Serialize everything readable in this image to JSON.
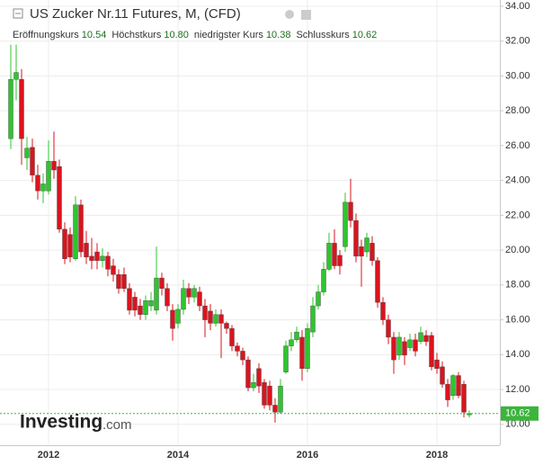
{
  "chart_data": {
    "type": "candlestick",
    "title": "US Zucker Nr.11 Futures, M, (CFD)",
    "quote": {
      "names": [
        "Eröffnungskurs",
        "Höchstkurs",
        "niedrigster Kurs",
        "Schlusskurs"
      ],
      "value_labels": [
        "10.54",
        "10.80",
        "10.38",
        "10.62"
      ]
    },
    "watermark": {
      "brand": "Investing",
      "suffix": ".com"
    },
    "categories": [
      null,
      null,
      null,
      null,
      null,
      null,
      null,
      "2012",
      null,
      null,
      null,
      null,
      null,
      null,
      null,
      null,
      null,
      null,
      null,
      null,
      null,
      null,
      null,
      null,
      null,
      null,
      null,
      null,
      null,
      null,
      null,
      "2014",
      null,
      null,
      null,
      null,
      null,
      null,
      null,
      null,
      null,
      null,
      null,
      null,
      null,
      null,
      null,
      null,
      null,
      null,
      null,
      null,
      null,
      null,
      null,
      "2016",
      null,
      null,
      null,
      null,
      null,
      null,
      null,
      null,
      null,
      null,
      null,
      null,
      null,
      null,
      null,
      null,
      null,
      null,
      null,
      null,
      null,
      null,
      null,
      "2018",
      null,
      null,
      null,
      null,
      null,
      null
    ],
    "open": [
      26.4,
      29.8,
      29.8,
      25.3,
      25.9,
      24.3,
      23.4,
      23.4,
      25.1,
      24.8,
      21.2,
      20.9,
      19.5,
      22.6,
      20.4,
      19.65,
      19.9,
      19.4,
      19.65,
      19.1,
      18.6,
      18.6,
      17.8,
      17.3,
      16.8,
      16.3,
      16.8,
      16.55,
      18.4,
      17.8,
      16.55,
      15.8,
      16.6,
      17.8,
      17.3,
      17.6,
      16.8,
      16.5,
      15.8,
      16.3,
      15.8,
      15.5,
      14.5,
      14.2,
      13.7,
      12.1,
      13.2,
      12.4,
      12.2,
      11.1,
      10.7,
      13.0,
      14.5,
      14.85,
      15.0,
      13.2,
      15.3,
      16.8,
      17.6,
      18.9,
      20.4,
      19.7,
      20.2,
      22.75,
      21.7,
      20.2,
      19.9,
      20.4,
      19.4,
      17.0,
      16.0,
      15.0,
      13.97,
      14.75,
      14.4,
      14.85,
      14.75,
      15.1,
      15.1,
      13.7,
      13.3,
      12.3,
      11.65,
      12.8,
      12.3,
      10.54
    ],
    "high": [
      31.8,
      31.8,
      30.4,
      26.5,
      26.4,
      24.9,
      24.4,
      26.3,
      26.8,
      25.2,
      21.6,
      21.3,
      23.1,
      22.9,
      21.1,
      20.7,
      20.4,
      20.1,
      19.9,
      19.5,
      18.9,
      19.0,
      18.1,
      17.6,
      17.2,
      17.4,
      17.6,
      20.2,
      18.7,
      18.1,
      16.9,
      16.9,
      18.3,
      18.1,
      18.0,
      17.9,
      17.2,
      16.9,
      16.6,
      16.6,
      15.9,
      15.7,
      14.7,
      14.4,
      13.9,
      12.9,
      13.5,
      12.6,
      12.5,
      11.5,
      12.6,
      14.8,
      15.3,
      15.6,
      15.4,
      15.8,
      17.3,
      18.0,
      19.3,
      21.0,
      21.2,
      20.0,
      23.3,
      24.1,
      22.1,
      20.6,
      21.0,
      20.8,
      19.6,
      17.3,
      16.3,
      15.3,
      15.3,
      15.0,
      15.2,
      15.2,
      15.6,
      15.4,
      15.3,
      14.1,
      13.6,
      12.6,
      12.9,
      13.0,
      12.5,
      10.8
    ],
    "low": [
      25.8,
      28.6,
      24.9,
      24.6,
      23.9,
      22.9,
      22.7,
      23.2,
      24.1,
      21.0,
      19.2,
      19.3,
      19.4,
      19.6,
      19.2,
      18.9,
      18.9,
      19.0,
      18.5,
      18.2,
      17.5,
      17.6,
      16.3,
      16.2,
      16.0,
      16.0,
      16.5,
      16.3,
      17.4,
      16.5,
      14.8,
      15.5,
      16.3,
      16.9,
      17.0,
      16.5,
      15.0,
      15.4,
      15.6,
      13.8,
      15.2,
      14.2,
      13.9,
      13.4,
      11.9,
      11.9,
      11.8,
      10.9,
      10.8,
      10.1,
      10.6,
      12.9,
      14.2,
      14.7,
      12.5,
      13.0,
      15.0,
      16.6,
      17.4,
      18.8,
      18.9,
      18.6,
      19.9,
      21.3,
      19.3,
      17.9,
      19.6,
      19.1,
      16.7,
      15.7,
      14.6,
      12.9,
      13.7,
      13.4,
      14.2,
      13.9,
      14.6,
      14.5,
      13.1,
      12.9,
      12.1,
      11.0,
      11.4,
      11.5,
      10.4,
      10.38
    ],
    "close": [
      29.8,
      30.2,
      26.4,
      25.85,
      24.3,
      23.4,
      23.8,
      25.1,
      24.6,
      21.2,
      19.5,
      19.6,
      22.6,
      19.9,
      19.6,
      19.4,
      19.4,
      19.65,
      18.9,
      18.6,
      17.8,
      17.8,
      16.55,
      16.55,
      16.3,
      17.1,
      17.1,
      18.4,
      17.8,
      16.8,
      15.5,
      16.6,
      17.8,
      17.3,
      17.8,
      16.8,
      16.0,
      15.8,
      16.3,
      15.8,
      15.5,
      14.5,
      14.2,
      13.7,
      12.1,
      12.4,
      12.2,
      11.1,
      11.1,
      10.7,
      12.2,
      14.5,
      14.85,
      15.3,
      13.2,
      15.5,
      16.8,
      17.6,
      18.9,
      20.4,
      19.1,
      19.1,
      22.75,
      21.7,
      19.65,
      19.65,
      20.7,
      19.4,
      17.0,
      16.0,
      15.0,
      13.7,
      15.0,
      13.97,
      14.85,
      14.2,
      15.26,
      14.75,
      13.3,
      13.2,
      12.3,
      11.4,
      12.8,
      11.65,
      10.7,
      10.62
    ],
    "up_color": "#2fc42f",
    "down_color": "#d9141e",
    "last_price_color": "#3bb53b",
    "ylim": [
      8.8,
      34.36
    ],
    "yticks": [
      {
        "value": 10,
        "label": "10.00"
      },
      {
        "value": 12,
        "label": "12.00"
      },
      {
        "value": 14,
        "label": "14.00"
      },
      {
        "value": 16,
        "label": "16.00"
      },
      {
        "value": 18,
        "label": "18.00"
      },
      {
        "value": 20,
        "label": "20.00"
      },
      {
        "value": 22,
        "label": "22.00"
      },
      {
        "value": 24,
        "label": "24.00"
      },
      {
        "value": 26,
        "label": "26.00"
      },
      {
        "value": 28,
        "label": "28.00"
      },
      {
        "value": 30,
        "label": "30.00"
      },
      {
        "value": 32,
        "label": "32.00"
      },
      {
        "value": 34,
        "label": "34.00"
      }
    ],
    "grid": true
  }
}
